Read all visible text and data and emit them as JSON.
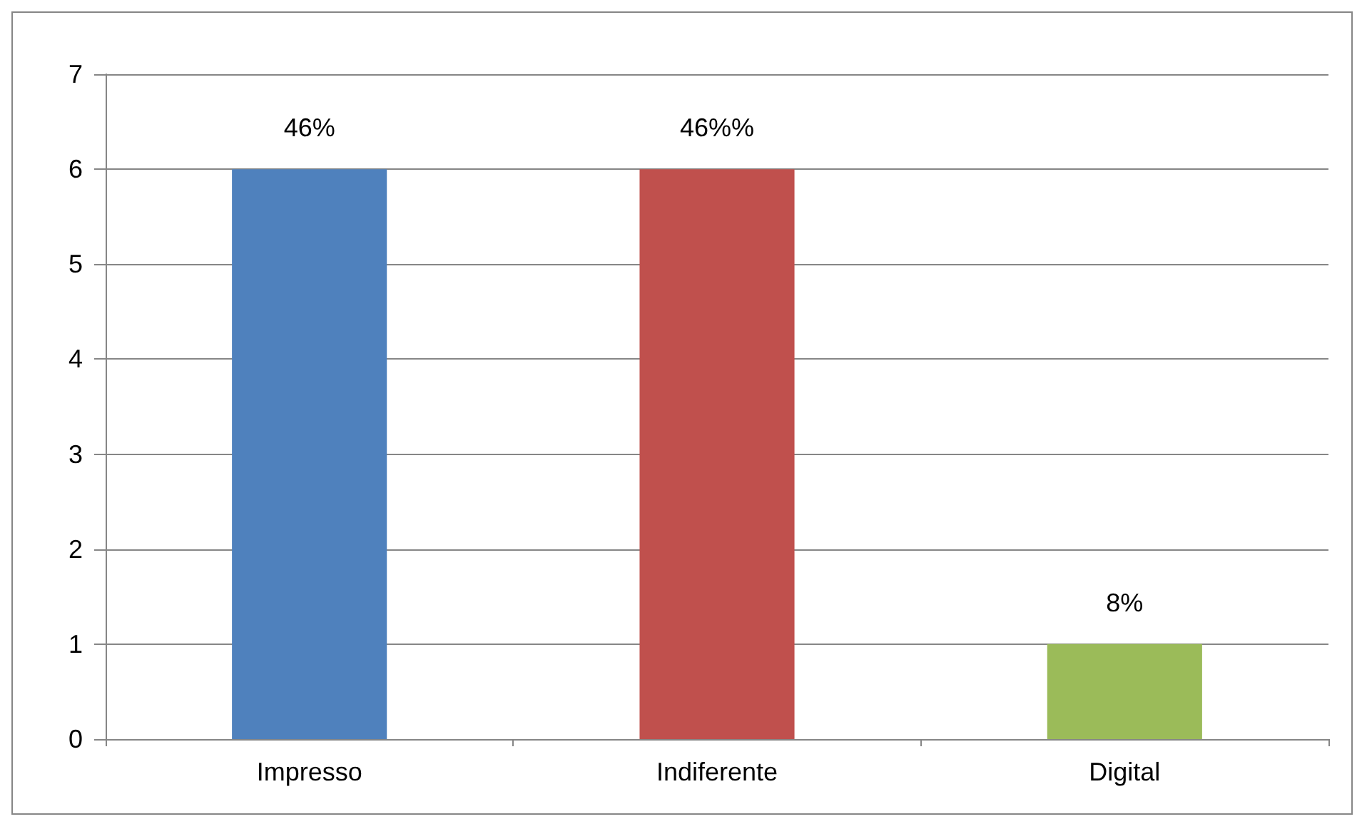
{
  "chart_data": {
    "type": "bar",
    "categories": [
      "Impresso",
      "Indiferente",
      "Digital"
    ],
    "values": [
      6,
      6,
      1
    ],
    "colors": [
      "#4f81bd",
      "#c0504d",
      "#9bbb59"
    ],
    "annotations": [
      {
        "text": "46%",
        "x": "Impresso",
        "y": 6
      },
      {
        "text": "46%%",
        "x": "Indiferente",
        "y": 6
      },
      {
        "text": "8%",
        "x": "Digital",
        "y": 1
      }
    ],
    "ylim": [
      0,
      7
    ],
    "yticks": [
      0,
      1,
      2,
      3,
      4,
      5,
      6,
      7
    ],
    "grid": "y"
  }
}
